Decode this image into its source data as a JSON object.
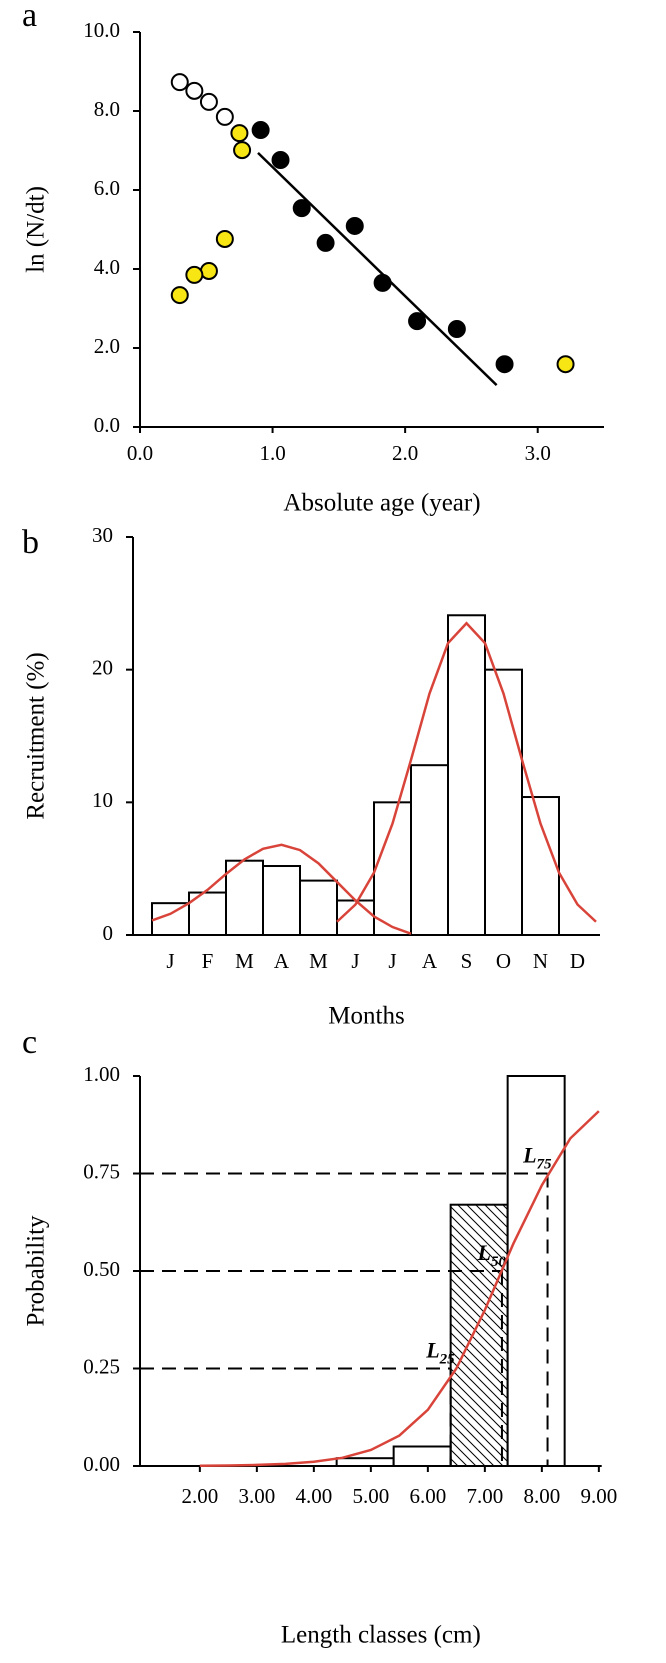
{
  "chart_data": [
    {
      "type": "scatter",
      "panel": "a",
      "xlabel": "Absolute age (year)",
      "ylabel": "ln (N/dt)",
      "xlim": [
        0,
        3.5
      ],
      "xticks": [
        {
          "value": 0,
          "label": "0.0"
        },
        {
          "value": 1,
          "label": "1.0"
        },
        {
          "value": 2,
          "label": "2.0"
        },
        {
          "value": 3,
          "label": "3.0"
        }
      ],
      "ylim": [
        0,
        10
      ],
      "yticks": [
        {
          "value": 0,
          "label": "0.0"
        },
        {
          "value": 2,
          "label": "2.0"
        },
        {
          "value": 4,
          "label": "4.0"
        },
        {
          "value": 6,
          "label": "6.0"
        },
        {
          "value": 8,
          "label": "8.0"
        },
        {
          "value": 10,
          "label": "10.0"
        }
      ],
      "series": [
        {
          "color": "#ffffff",
          "x": [
            0.3,
            0.41,
            0.52,
            0.64
          ],
          "values": [
            8.73,
            8.51,
            8.23,
            7.85
          ]
        },
        {
          "color": "#f7e614",
          "x": [
            0.75,
            0.77,
            0.64,
            0.52,
            0.41,
            0.3,
            3.21
          ],
          "values": [
            7.44,
            7.01,
            4.76,
            3.95,
            3.85,
            3.34,
            1.59
          ]
        },
        {
          "color": "#000000",
          "x": [
            0.91,
            1.06,
            1.22,
            1.4,
            1.62,
            1.83,
            2.09,
            2.39,
            2.75
          ],
          "values": [
            7.52,
            6.76,
            5.54,
            4.66,
            5.09,
            3.65,
            2.68,
            2.48,
            1.59
          ]
        },
        {
          "type": "line",
          "color": "#000000",
          "x": [
            0.89,
            2.69
          ],
          "values": [
            6.94,
            1.06
          ]
        }
      ]
    },
    {
      "type": "bar",
      "panel": "b",
      "xlabel": "Months",
      "ylabel": "Recruitment (%)",
      "categories": [
        "J",
        "F",
        "M",
        "A",
        "M",
        "J",
        "J",
        "A",
        "S",
        "O",
        "N",
        "D"
      ],
      "values": [
        2.4,
        3.2,
        5.6,
        5.2,
        4.1,
        2.6,
        10.0,
        12.8,
        24.1,
        20.0,
        10.4,
        0
      ],
      "color": "#ffffff",
      "ylim": [
        0,
        30
      ],
      "yticks": [
        0,
        10,
        20,
        30
      ],
      "series": [
        {
          "type": "line",
          "color": "#d9443a",
          "x": [
            -0.5,
            0,
            0.5,
            1,
            1.5,
            2,
            2.5,
            3,
            3.5,
            4,
            4.5,
            5,
            5.5,
            6,
            6.5
          ],
          "values": [
            1.1,
            1.6,
            2.4,
            3.4,
            4.6,
            5.7,
            6.5,
            6.8,
            6.4,
            5.4,
            4.0,
            2.6,
            1.4,
            0.6,
            0.1
          ]
        },
        {
          "type": "line",
          "color": "#d9443a",
          "x": [
            4.5,
            5,
            5.5,
            6,
            6.5,
            7,
            7.5,
            8,
            8.5,
            9,
            9.5,
            10,
            10.5,
            11,
            11.5
          ],
          "values": [
            1.0,
            2.3,
            4.7,
            8.4,
            13.2,
            18.2,
            22.0,
            23.5,
            22.0,
            18.2,
            13.2,
            8.4,
            4.7,
            2.3,
            1.0
          ]
        }
      ]
    },
    {
      "type": "histogram",
      "panel": "c",
      "xlabel": "Length classes (cm)",
      "ylabel": "Probability",
      "xlim": [
        0.95,
        9.05
      ],
      "xticks": [
        {
          "value": 2,
          "label": "2.00"
        },
        {
          "value": 3,
          "label": "3.00"
        },
        {
          "value": 4,
          "label": "4.00"
        },
        {
          "value": 5,
          "label": "5.00"
        },
        {
          "value": 6,
          "label": "6.00"
        },
        {
          "value": 7,
          "label": "7.00"
        },
        {
          "value": 8,
          "label": "8.00"
        },
        {
          "value": 9,
          "label": "9.00"
        }
      ],
      "ylim": [
        0,
        1
      ],
      "yticks": [
        {
          "value": 0,
          "label": "0.00"
        },
        {
          "value": 0.25,
          "label": "0.25"
        },
        {
          "value": 0.5,
          "label": "0.50"
        },
        {
          "value": 0.75,
          "label": "0.75"
        },
        {
          "value": 1,
          "label": "1.00"
        }
      ],
      "bins": [
        4.4,
        5.4,
        6.4,
        7.4,
        8.4
      ],
      "values": [
        0.02,
        0.05,
        0.67,
        1.0
      ],
      "hatched": [
        false,
        false,
        true,
        false
      ],
      "color": "#ffffff",
      "thresholds": [
        {
          "name": "L",
          "sub": "25",
          "x": 6.4,
          "y": 0.25
        },
        {
          "name": "L",
          "sub": "50",
          "x": 7.3,
          "y": 0.5
        },
        {
          "name": "L",
          "sub": "75",
          "x": 8.1,
          "y": 0.75
        }
      ],
      "series": [
        {
          "type": "line",
          "color": "#d9443a",
          "x": [
            2,
            2.5,
            3,
            3.5,
            4,
            4.5,
            5,
            5.5,
            6,
            6.5,
            7,
            7.5,
            8,
            8.5,
            9
          ],
          "values": [
            0.0007,
            0.0014,
            0.0028,
            0.0054,
            0.011,
            0.021,
            0.041,
            0.078,
            0.144,
            0.25,
            0.4,
            0.57,
            0.72,
            0.84,
            0.91
          ]
        }
      ]
    }
  ]
}
